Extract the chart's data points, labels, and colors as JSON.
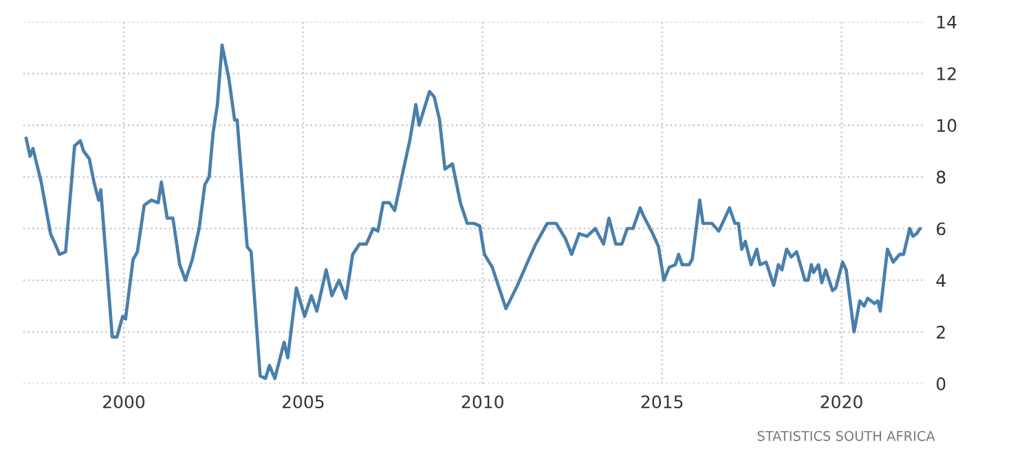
{
  "chart_data": {
    "type": "line",
    "x": [
      1997.28,
      1997.39,
      1997.47,
      1997.7,
      1997.96,
      1998.09,
      1998.21,
      1998.38,
      1998.63,
      1998.79,
      1998.88,
      1999.04,
      1999.17,
      1999.3,
      1999.36,
      1999.68,
      1999.81,
      1999.97,
      2000.05,
      2000.26,
      2000.38,
      2000.57,
      2000.77,
      2000.96,
      2001.05,
      2001.21,
      2001.37,
      2001.56,
      2001.72,
      2001.91,
      2002.1,
      2002.26,
      2002.38,
      2002.49,
      2002.61,
      2002.74,
      2002.93,
      2003.09,
      2003.16,
      2003.44,
      2003.55,
      2003.8,
      2003.95,
      2004.06,
      2004.21,
      2004.47,
      2004.57,
      2004.81,
      2005.04,
      2005.23,
      2005.38,
      2005.64,
      2005.8,
      2006.0,
      2006.19,
      2006.38,
      2006.57,
      2006.76,
      2006.95,
      2007.08,
      2007.23,
      2007.4,
      2007.55,
      2007.78,
      2007.97,
      2008.14,
      2008.23,
      2008.52,
      2008.65,
      2008.8,
      2008.95,
      2009.16,
      2009.38,
      2009.57,
      2009.76,
      2009.92,
      2010.05,
      2010.27,
      2010.46,
      2010.65,
      2010.97,
      2011.22,
      2011.48,
      2011.8,
      2012.05,
      2012.31,
      2012.48,
      2012.69,
      2012.91,
      2013.14,
      2013.37,
      2013.52,
      2013.71,
      2013.88,
      2014.03,
      2014.19,
      2014.39,
      2014.48,
      2014.74,
      2014.9,
      2015.05,
      2015.2,
      2015.37,
      2015.46,
      2015.56,
      2015.75,
      2015.84,
      2016.05,
      2016.14,
      2016.39,
      2016.58,
      2016.78,
      2016.88,
      2017.03,
      2017.13,
      2017.22,
      2017.32,
      2017.48,
      2017.64,
      2017.73,
      2017.9,
      2018.11,
      2018.24,
      2018.34,
      2018.47,
      2018.6,
      2018.75,
      2018.98,
      2019.07,
      2019.16,
      2019.22,
      2019.36,
      2019.45,
      2019.56,
      2019.75,
      2019.84,
      2020.03,
      2020.13,
      2020.35,
      2020.51,
      2020.63,
      2020.73,
      2020.92,
      2021.01,
      2021.08,
      2021.28,
      2021.44,
      2021.62,
      2021.73,
      2021.9,
      2021.99,
      2022.09,
      2022.19
    ],
    "series": [
      {
        "color": "#4a7fab",
        "values": [
          9.5,
          8.8,
          9.1,
          7.8,
          5.8,
          5.4,
          5.0,
          5.1,
          9.2,
          9.4,
          9.0,
          8.7,
          7.8,
          7.1,
          7.5,
          1.8,
          1.8,
          2.6,
          2.5,
          4.8,
          5.1,
          6.9,
          7.1,
          7.0,
          7.8,
          6.4,
          6.4,
          4.6,
          4.0,
          4.8,
          6.0,
          7.7,
          8.0,
          9.7,
          10.8,
          13.1,
          11.8,
          10.2,
          10.2,
          5.3,
          5.1,
          0.3,
          0.2,
          0.7,
          0.2,
          1.6,
          1.0,
          3.7,
          2.6,
          3.4,
          2.8,
          4.4,
          3.4,
          4.0,
          3.3,
          5.0,
          5.4,
          5.4,
          6.0,
          5.9,
          7.0,
          7.0,
          6.7,
          8.2,
          9.4,
          10.8,
          10.0,
          11.3,
          11.1,
          10.2,
          8.3,
          8.5,
          7.0,
          6.2,
          6.2,
          6.1,
          5.0,
          4.5,
          3.7,
          2.9,
          3.8,
          4.6,
          5.4,
          6.2,
          6.2,
          5.6,
          5.0,
          5.8,
          5.7,
          6.0,
          5.4,
          6.4,
          5.4,
          5.4,
          6.0,
          6.0,
          6.8,
          6.5,
          5.8,
          5.3,
          4.0,
          4.5,
          4.6,
          5.0,
          4.6,
          4.6,
          4.8,
          7.1,
          6.2,
          6.2,
          5.9,
          6.5,
          6.8,
          6.2,
          6.2,
          5.2,
          5.5,
          4.6,
          5.2,
          4.6,
          4.7,
          3.8,
          4.6,
          4.4,
          5.2,
          4.9,
          5.1,
          4.0,
          4.0,
          4.6,
          4.3,
          4.6,
          3.9,
          4.4,
          3.6,
          3.7,
          4.7,
          4.4,
          2.0,
          3.2,
          3.0,
          3.3,
          3.1,
          3.2,
          2.8,
          5.2,
          4.7,
          5.0,
          5.0,
          6.0,
          5.7,
          5.8,
          6.0
        ]
      }
    ],
    "xlim": [
      1997.2,
      2022.3
    ],
    "xticks": [
      2000,
      2005,
      2010,
      2015,
      2020
    ],
    "ylim": [
      0,
      14
    ],
    "yticks": [
      0,
      2,
      4,
      6,
      8,
      10,
      12,
      14
    ],
    "grid": true,
    "marker": "none",
    "line_style": "solid",
    "annotations": [
      "STATISTICS SOUTH AFRICA"
    ]
  }
}
